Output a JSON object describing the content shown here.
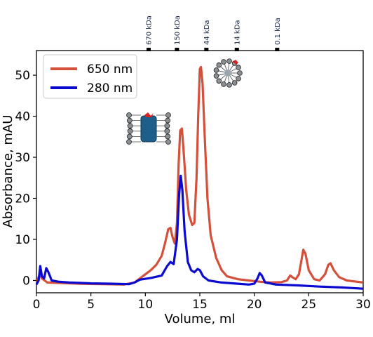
{
  "chart_data": {
    "type": "line",
    "xlabel": "Volume, ml",
    "ylabel": "Absorbance, mAU",
    "xlim": [
      0,
      30
    ],
    "ylim": [
      -3,
      56
    ],
    "xticks": [
      0,
      5,
      10,
      15,
      20,
      25,
      30
    ],
    "yticks": [
      0,
      10,
      20,
      30,
      40,
      50
    ],
    "grid": false,
    "legend_position": "top-left",
    "series": [
      {
        "name": "650 nm",
        "color": "#d5503a",
        "points": [
          [
            0,
            -0.5
          ],
          [
            0.3,
            1.5
          ],
          [
            0.5,
            0.5
          ],
          [
            1.0,
            -0.5
          ],
          [
            2.0,
            -0.6
          ],
          [
            4.0,
            -0.8
          ],
          [
            6.0,
            -0.9
          ],
          [
            8.0,
            -1.0
          ],
          [
            9.0,
            -0.5
          ],
          [
            9.5,
            0.5
          ],
          [
            10.0,
            1.5
          ],
          [
            10.5,
            2.5
          ],
          [
            11.0,
            3.8
          ],
          [
            11.5,
            6.0
          ],
          [
            11.8,
            9.0
          ],
          [
            12.1,
            12.5
          ],
          [
            12.3,
            12.8
          ],
          [
            12.5,
            10.5
          ],
          [
            12.7,
            9.0
          ],
          [
            12.9,
            14.0
          ],
          [
            13.05,
            28.0
          ],
          [
            13.2,
            36.5
          ],
          [
            13.35,
            37.0
          ],
          [
            13.5,
            32.0
          ],
          [
            13.75,
            22.0
          ],
          [
            14.0,
            16.0
          ],
          [
            14.3,
            13.5
          ],
          [
            14.5,
            14.0
          ],
          [
            14.7,
            25.0
          ],
          [
            14.85,
            40.0
          ],
          [
            15.0,
            51.5
          ],
          [
            15.1,
            52.0
          ],
          [
            15.25,
            48.0
          ],
          [
            15.45,
            35.0
          ],
          [
            15.7,
            20.0
          ],
          [
            16.0,
            11.0
          ],
          [
            16.5,
            5.5
          ],
          [
            17.0,
            2.5
          ],
          [
            17.5,
            1.0
          ],
          [
            18.5,
            0.3
          ],
          [
            19.5,
            0.0
          ],
          [
            20.5,
            -0.3
          ],
          [
            21.5,
            -0.5
          ],
          [
            22.5,
            -0.4
          ],
          [
            23.0,
            0.0
          ],
          [
            23.3,
            1.2
          ],
          [
            23.5,
            0.8
          ],
          [
            23.8,
            0.3
          ],
          [
            24.1,
            1.5
          ],
          [
            24.3,
            4.5
          ],
          [
            24.5,
            7.5
          ],
          [
            24.7,
            6.5
          ],
          [
            25.0,
            2.5
          ],
          [
            25.5,
            0.3
          ],
          [
            26.0,
            0.0
          ],
          [
            26.5,
            1.5
          ],
          [
            26.8,
            3.8
          ],
          [
            27.0,
            4.2
          ],
          [
            27.3,
            2.5
          ],
          [
            27.8,
            0.8
          ],
          [
            28.5,
            0.0
          ],
          [
            30.0,
            -0.5
          ]
        ]
      },
      {
        "name": "280 nm",
        "color": "#0a0ad0",
        "points": [
          [
            0,
            -1.0
          ],
          [
            0.2,
            0.0
          ],
          [
            0.35,
            3.5
          ],
          [
            0.5,
            1.0
          ],
          [
            0.7,
            0.5
          ],
          [
            0.9,
            3.0
          ],
          [
            1.1,
            2.0
          ],
          [
            1.4,
            0.0
          ],
          [
            2.0,
            -0.3
          ],
          [
            3.0,
            -0.5
          ],
          [
            5.0,
            -0.7
          ],
          [
            7.0,
            -0.8
          ],
          [
            8.5,
            -0.9
          ],
          [
            9.0,
            -0.5
          ],
          [
            9.5,
            0.2
          ],
          [
            10.5,
            0.6
          ],
          [
            11.5,
            1.2
          ],
          [
            12.0,
            3.5
          ],
          [
            12.3,
            4.5
          ],
          [
            12.6,
            4.0
          ],
          [
            12.9,
            10.0
          ],
          [
            13.1,
            21.0
          ],
          [
            13.25,
            25.5
          ],
          [
            13.4,
            22.0
          ],
          [
            13.6,
            12.0
          ],
          [
            13.9,
            4.5
          ],
          [
            14.2,
            2.5
          ],
          [
            14.5,
            2.0
          ],
          [
            14.8,
            2.8
          ],
          [
            15.0,
            2.5
          ],
          [
            15.3,
            1.0
          ],
          [
            15.8,
            0.0
          ],
          [
            17.0,
            -0.5
          ],
          [
            18.5,
            -0.8
          ],
          [
            19.5,
            -1.0
          ],
          [
            20.0,
            -0.8
          ],
          [
            20.3,
            0.5
          ],
          [
            20.5,
            1.8
          ],
          [
            20.7,
            1.2
          ],
          [
            21.0,
            -0.5
          ],
          [
            22.0,
            -1.0
          ],
          [
            24.0,
            -1.2
          ],
          [
            26.0,
            -1.5
          ],
          [
            28.0,
            -1.7
          ],
          [
            30.0,
            -2.0
          ]
        ]
      }
    ],
    "top_axis": {
      "labels": [
        "670 kDa",
        "150 kDa",
        "44 kDa",
        "14 kDa",
        "0.1 kDa"
      ],
      "positions": [
        10.3,
        12.9,
        15.6,
        18.4,
        22.1
      ]
    }
  },
  "decor": {
    "glyphs": [
      "micelle-with-protein-icon",
      "empty-micelle-icon"
    ]
  }
}
